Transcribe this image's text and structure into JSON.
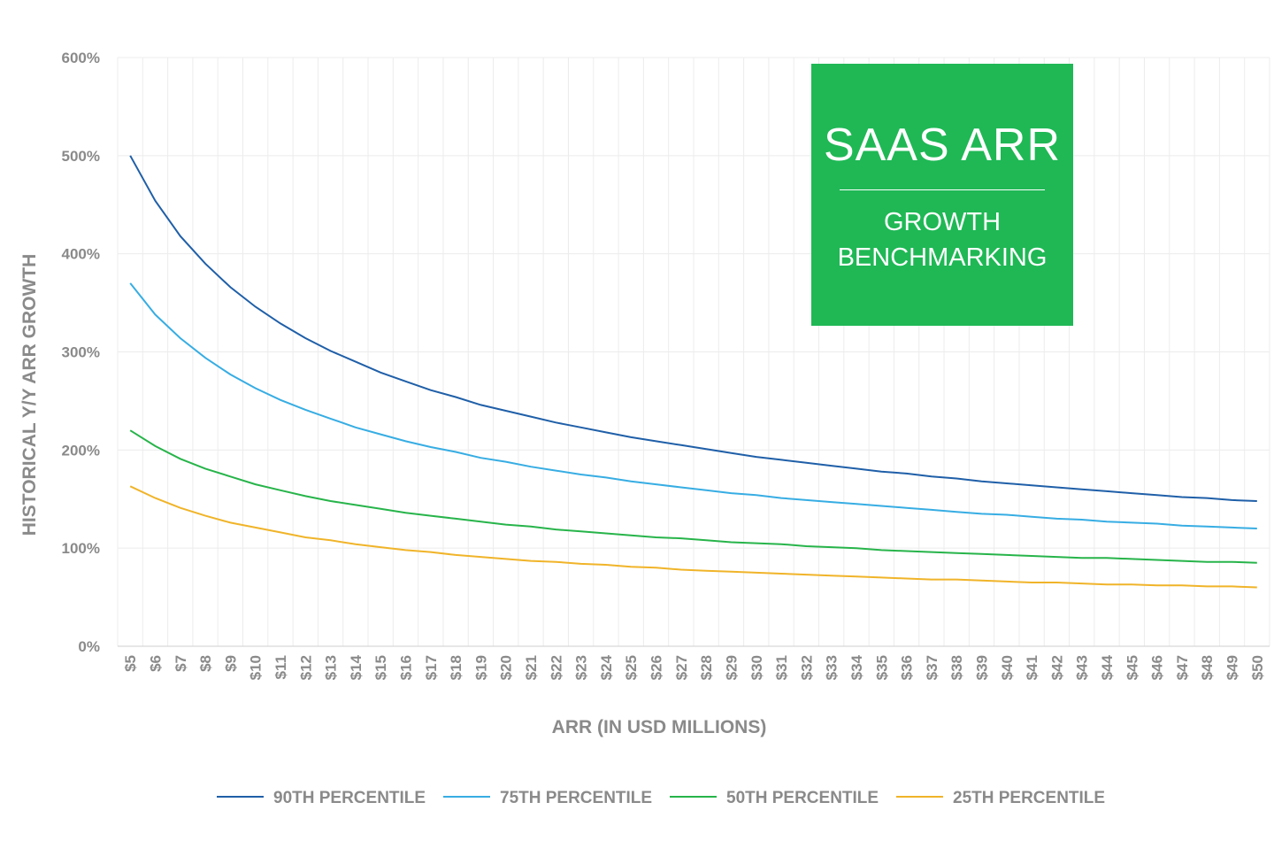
{
  "chart_data": {
    "type": "line",
    "title": "SAAS ARR",
    "subtitle": "GROWTH BENCHMARKING",
    "x_label": "ARR (IN USD MILLIONS)",
    "y_label": "HISTORICAL Y/Y ARR GROWTH",
    "categories": [
      "$5",
      "$6",
      "$7",
      "$8",
      "$9",
      "$10",
      "$11",
      "$12",
      "$13",
      "$14",
      "$15",
      "$16",
      "$17",
      "$18",
      "$19",
      "$20",
      "$21",
      "$22",
      "$23",
      "$24",
      "$25",
      "$26",
      "$27",
      "$28",
      "$29",
      "$30",
      "$31",
      "$32",
      "$33",
      "$34",
      "$35",
      "$36",
      "$37",
      "$38",
      "$39",
      "$40",
      "$41",
      "$42",
      "$43",
      "$44",
      "$45",
      "$46",
      "$47",
      "$48",
      "$49",
      "$50"
    ],
    "ylim": [
      0,
      600
    ],
    "yticks": [
      {
        "value": 0,
        "label": "0%"
      },
      {
        "value": 100,
        "label": "100%"
      },
      {
        "value": 200,
        "label": "200%"
      },
      {
        "value": 300,
        "label": "300%"
      },
      {
        "value": 400,
        "label": "400%"
      },
      {
        "value": 500,
        "label": "500%"
      },
      {
        "value": 600,
        "label": "600%"
      }
    ],
    "grid": true,
    "legend": "bottom",
    "series": [
      {
        "name": "90TH PERCENTILE",
        "color": "#1f5fa8",
        "values": [
          500,
          454,
          418,
          390,
          366,
          346,
          329,
          314,
          301,
          290,
          279,
          270,
          261,
          254,
          246,
          240,
          234,
          228,
          223,
          218,
          213,
          209,
          205,
          201,
          197,
          193,
          190,
          187,
          184,
          181,
          178,
          176,
          173,
          171,
          168,
          166,
          164,
          162,
          160,
          158,
          156,
          154,
          152,
          151,
          149,
          148
        ]
      },
      {
        "name": "75TH PERCENTILE",
        "color": "#37ade3",
        "values": [
          370,
          338,
          314,
          294,
          277,
          263,
          251,
          241,
          232,
          223,
          216,
          209,
          203,
          198,
          192,
          188,
          183,
          179,
          175,
          172,
          168,
          165,
          162,
          159,
          156,
          154,
          151,
          149,
          147,
          145,
          143,
          141,
          139,
          137,
          135,
          134,
          132,
          130,
          129,
          127,
          126,
          125,
          123,
          122,
          121,
          120
        ]
      },
      {
        "name": "50TH PERCENTILE",
        "color": "#27b44a",
        "values": [
          220,
          204,
          191,
          181,
          173,
          165,
          159,
          153,
          148,
          144,
          140,
          136,
          133,
          130,
          127,
          124,
          122,
          119,
          117,
          115,
          113,
          111,
          110,
          108,
          106,
          105,
          104,
          102,
          101,
          100,
          98,
          97,
          96,
          95,
          94,
          93,
          92,
          91,
          90,
          90,
          89,
          88,
          87,
          86,
          86,
          85
        ]
      },
      {
        "name": "25TH PERCENTILE",
        "color": "#f0b429",
        "values": [
          163,
          151,
          141,
          133,
          126,
          121,
          116,
          111,
          108,
          104,
          101,
          98,
          96,
          93,
          91,
          89,
          87,
          86,
          84,
          83,
          81,
          80,
          78,
          77,
          76,
          75,
          74,
          73,
          72,
          71,
          70,
          69,
          68,
          68,
          67,
          66,
          65,
          65,
          64,
          63,
          63,
          62,
          62,
          61,
          61,
          60
        ]
      }
    ]
  }
}
